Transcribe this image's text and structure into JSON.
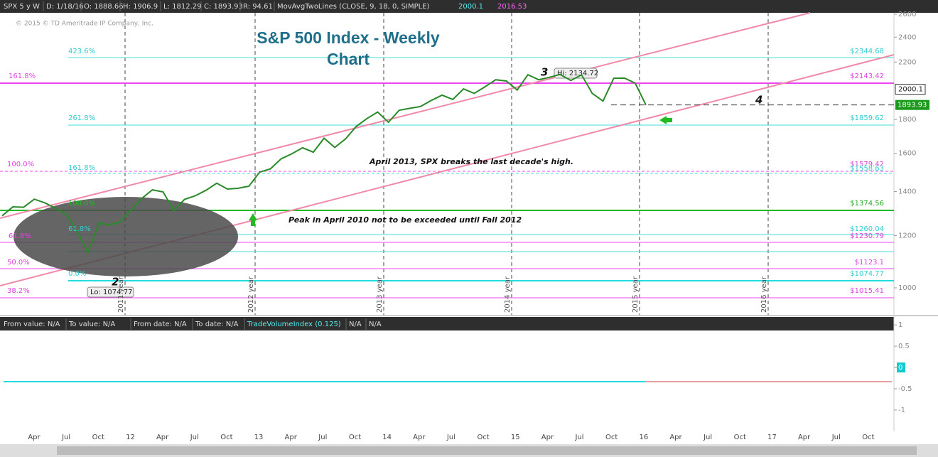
{
  "header": {
    "symbol": "SPX 5 y W",
    "date": "D: 1/18/16",
    "open": "O: 1888.66",
    "high": "H: 1906.9",
    "low": "L: 1812.29",
    "close": "C: 1893.93",
    "range": "R: 94.61",
    "study": "MovAvgTwoLines (CLOSE, 9, 18, 0, SIMPLE)",
    "study_values": [
      "2000.1",
      "2016.53"
    ]
  },
  "copyright": "© 2015 © TD Ameritrade IP Company, Inc.",
  "title": "S&P 500 Index - Weekly Chart",
  "annotations": {
    "april_2013": "April 2013, SPX breaks the last decade's high.",
    "peak_2010": "Peak in April 2010 not to be exceeded until Fall 2012",
    "wave_2": "2",
    "wave_3": "3",
    "wave_4": "4",
    "high": "Hi: 2134.72",
    "low": "Lo: 1074.77"
  },
  "price_axis": {
    "log_scale": true,
    "ylim": [
      910,
      2613
    ],
    "yticks": [
      2600,
      2400,
      2200,
      1800,
      1600,
      1400,
      1200,
      1000
    ],
    "study_price": 2000.1,
    "last_price": 1893.93
  },
  "closes": [
    1286,
    1327,
    1325,
    1363,
    1345,
    1320,
    1292,
    1218,
    1131,
    1253,
    1247,
    1258,
    1312,
    1366,
    1408,
    1398,
    1310,
    1362,
    1379,
    1406,
    1441,
    1412,
    1416,
    1426,
    1498,
    1515,
    1569,
    1597,
    1631,
    1606,
    1686,
    1633,
    1682,
    1757,
    1806,
    1848,
    1783,
    1859,
    1872,
    1884,
    1924,
    1960,
    1931,
    2003,
    1972,
    2018,
    2068,
    2059,
    1995,
    2105,
    2068,
    2086,
    2107,
    2063,
    2104,
    1972,
    1920,
    2079,
    2080,
    2044,
    1894
  ],
  "fib_left": [
    "423.6%",
    "161.8%",
    "261.8%",
    "100.0%",
    "161.8%",
    "100.0%",
    "61.8%",
    "61.8%",
    "50.0%",
    "0.0%",
    "38.2%"
  ],
  "fib_right": [
    "$2344.68",
    "$2143.42",
    "$1859.62",
    "$1579.42",
    "$1558.63",
    "$1374.56",
    "$1260.04",
    "$1230.79",
    "$1123.1",
    "$1074.77",
    "$1015.41"
  ],
  "time_axis": [
    "Apr",
    "Jul",
    "Oct",
    "12",
    "Apr",
    "Jul",
    "Oct",
    "13",
    "Apr",
    "Jul",
    "Oct",
    "14",
    "Apr",
    "Jul",
    "Oct",
    "15",
    "Apr",
    "Jul",
    "Oct",
    "16",
    "Apr",
    "Jul",
    "Oct",
    "17",
    "Apr",
    "Jul",
    "Oct"
  ],
  "year_labels": [
    "2011 year",
    "2012 year",
    "2013 year",
    "2014 year",
    "2015 year",
    "2016 year"
  ],
  "lower_panel": {
    "header": [
      "From value: N/A",
      "To value: N/A",
      "From date: N/A",
      "To date: N/A",
      "TradeVolumeIndex (0.125)",
      "N/A",
      "N/A"
    ],
    "ylim": [
      -1.47,
      1.17
    ],
    "yticks": [
      1,
      0.5,
      0,
      -0.5,
      -1
    ]
  }
}
